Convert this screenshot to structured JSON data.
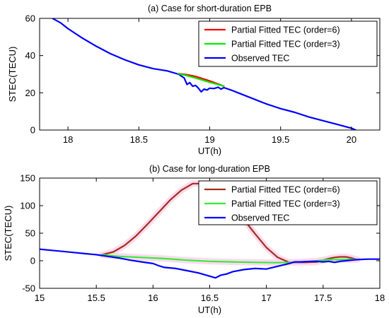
{
  "colors": {
    "partial6_a": "#ff0000",
    "partial3_a": "#00ee00",
    "observed": "#0000ff",
    "partial6_b": "#a0301c",
    "partial3_b": "#33ee33",
    "glow": "#ffd6ee"
  },
  "chart_data": [
    {
      "type": "line",
      "title": "(a) Case for short-duration EPB",
      "xlabel": "UT(h)",
      "ylabel": "STEC(TECU)",
      "xlim": [
        17.8,
        20.2
      ],
      "ylim": [
        0,
        60
      ],
      "xticks": [
        18,
        18.5,
        19,
        19.5,
        20
      ],
      "yticks": [
        0,
        20,
        40,
        60
      ],
      "xtick_labels": [
        "18",
        "18.5",
        "19",
        "19.5",
        "20"
      ],
      "ytick_labels": [
        "0",
        "20",
        "40",
        "60"
      ],
      "legend_position": "top-right",
      "series": [
        {
          "name": "Partial Fitted TEC (order=6)",
          "color_key": "partial6_a",
          "x": [
            18.78,
            18.85,
            18.9,
            18.95,
            19.0,
            19.05,
            19.1
          ],
          "y": [
            30.3,
            29.6,
            28.8,
            27.6,
            26.4,
            25.0,
            23.6
          ]
        },
        {
          "name": "Partial Fitted TEC (order=3)",
          "color_key": "partial3_a",
          "x": [
            18.78,
            18.85,
            18.9,
            18.95,
            19.0,
            19.05,
            19.1
          ],
          "y": [
            30.3,
            29.0,
            27.9,
            26.8,
            25.6,
            24.6,
            23.6
          ]
        },
        {
          "name": "Observed TEC",
          "color_key": "observed",
          "x": [
            17.88,
            17.95,
            18.0,
            18.1,
            18.2,
            18.3,
            18.4,
            18.5,
            18.6,
            18.7,
            18.78,
            18.82,
            18.84,
            18.86,
            18.88,
            18.9,
            18.92,
            18.94,
            18.96,
            18.98,
            19.0,
            19.03,
            19.06,
            19.08,
            19.1,
            19.15,
            19.2,
            19.3,
            19.4,
            19.5,
            19.6,
            19.7,
            19.8,
            19.9,
            20.0,
            20.03
          ],
          "y": [
            60.5,
            57.5,
            54.5,
            49.5,
            45.0,
            41.0,
            37.8,
            35.0,
            33.0,
            31.8,
            30.0,
            28.0,
            24.5,
            25.5,
            23.5,
            24.0,
            22.5,
            20.5,
            22.0,
            21.5,
            22.5,
            22.3,
            23.0,
            22.0,
            22.8,
            21.5,
            20.0,
            17.0,
            14.0,
            11.5,
            9.5,
            7.0,
            5.0,
            3.0,
            1.0,
            0.0
          ]
        }
      ]
    },
    {
      "type": "line",
      "title": "(b)  Case for long-duration EPB",
      "xlabel": "UT(h)",
      "ylabel": "STEC(TECU)",
      "xlim": [
        15,
        18
      ],
      "ylim": [
        -50,
        150
      ],
      "xticks": [
        15,
        15.5,
        16,
        16.5,
        17,
        17.5,
        18
      ],
      "yticks": [
        -50,
        0,
        50,
        100,
        150
      ],
      "xtick_labels": [
        "15",
        "15.5",
        "16",
        "16.5",
        "17",
        "17.5",
        "18"
      ],
      "ytick_labels": [
        "-50",
        "0",
        "50",
        "100",
        "150"
      ],
      "legend_position": "top-right",
      "series": [
        {
          "name": "Partial Fitted TEC (order=6)",
          "color_key": "partial6_b",
          "x": [
            15.55,
            15.65,
            15.75,
            15.85,
            15.95,
            16.05,
            16.15,
            16.25,
            16.35,
            16.42,
            16.5,
            16.6,
            16.7,
            16.8,
            16.9,
            17.0,
            17.1,
            17.2,
            17.25,
            17.35,
            17.45,
            17.5,
            17.55,
            17.6,
            17.65,
            17.7,
            17.75,
            17.8
          ],
          "y": [
            11,
            16,
            28,
            45,
            66,
            88,
            110,
            128,
            140,
            140,
            135,
            120,
            100,
            75,
            49,
            24,
            6,
            -3,
            -3,
            -3,
            -2,
            1,
            4,
            6,
            7,
            7,
            5,
            2
          ]
        },
        {
          "name": "Partial Fitted TEC (order=3)",
          "color_key": "partial3_b",
          "x": [
            15.55,
            15.7,
            15.9,
            16.1,
            16.3,
            16.5,
            16.7,
            16.9,
            17.1,
            17.2,
            17.3,
            17.4,
            17.45,
            17.55,
            17.65,
            17.75,
            17.8
          ],
          "y": [
            11,
            8,
            6,
            4,
            1,
            -1,
            -2,
            -3,
            -3.5,
            -3,
            -2,
            -1,
            0,
            2,
            2,
            2.5,
            2.5
          ]
        },
        {
          "name": "Observed TEC",
          "color_key": "observed",
          "x": [
            15.0,
            15.1,
            15.2,
            15.3,
            15.4,
            15.5,
            15.6,
            15.7,
            15.8,
            15.9,
            16.0,
            16.05,
            16.1,
            16.2,
            16.3,
            16.4,
            16.5,
            16.55,
            16.6,
            16.65,
            16.7,
            16.8,
            16.9,
            17.0,
            17.1,
            17.2,
            17.25,
            17.3,
            17.4,
            17.45,
            17.5,
            17.55,
            17.6,
            17.65,
            17.7,
            17.75,
            17.8,
            17.9,
            18.0
          ],
          "y": [
            21,
            19,
            17,
            15,
            13,
            11,
            8,
            5,
            1,
            -2,
            -5,
            -9,
            -12,
            -14,
            -18,
            -22,
            -28,
            -31,
            -26,
            -24,
            -20,
            -16,
            -14,
            -15,
            -10,
            -5,
            -2,
            -2,
            -1,
            -1,
            -2,
            -1,
            -3,
            -1,
            0,
            1,
            2,
            3,
            3
          ]
        }
      ]
    }
  ]
}
